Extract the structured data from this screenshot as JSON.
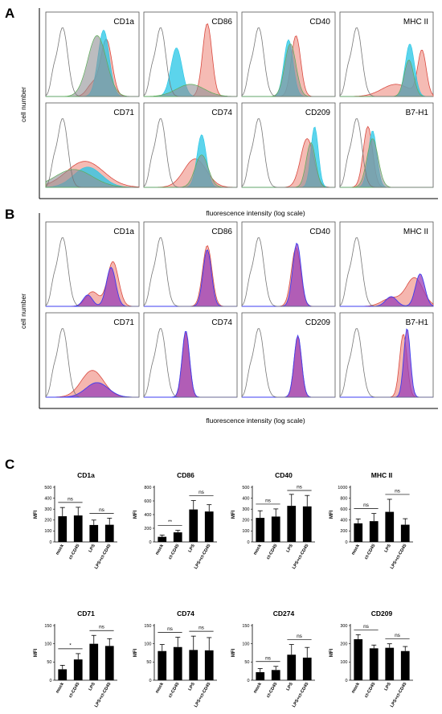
{
  "panels": {
    "A": {
      "letter": "A",
      "ylabel": "cell number",
      "xlabel": "fluorescence intensity (log scale)",
      "markers": [
        "CD1a",
        "CD86",
        "CD40",
        "MHC II",
        "CD71",
        "CD74",
        "CD209",
        "B7-H1"
      ]
    },
    "B": {
      "letter": "B",
      "ylabel": "cell number",
      "xlabel": "fluorescence intensity (log scale)",
      "markers": [
        "CD1a",
        "CD86",
        "CD40",
        "MHC II",
        "CD71",
        "CD74",
        "CD209",
        "B7-H1"
      ]
    },
    "C": {
      "letter": "C"
    }
  },
  "colors": {
    "isotype": "#777777",
    "red": "#d94a40",
    "red_fill": "#f2a49b",
    "cyan": "#25c6e6",
    "green": "#5cae58",
    "grey_fill": "#8f8f95",
    "purple": "#9a3fb8",
    "blue": "#3d3df0",
    "bar": "#000000"
  },
  "chart_data": [
    {
      "type": "bar",
      "title": "CD1a",
      "ylabel": "MFI",
      "categories": [
        "mock",
        "ct-CD45",
        "LPS",
        "LPS+ct-CD45"
      ],
      "values": [
        235,
        242,
        155,
        157
      ],
      "errors": [
        80,
        75,
        45,
        60
      ],
      "ylim": [
        0,
        500
      ],
      "yticks": [
        0,
        100,
        200,
        300,
        400,
        500
      ],
      "significance": [
        {
          "from": 0,
          "to": 1,
          "label": "ns"
        },
        {
          "from": 2,
          "to": 3,
          "label": "ns"
        }
      ]
    },
    {
      "type": "bar",
      "title": "CD86",
      "ylabel": "MFI",
      "categories": [
        "mock",
        "ct-CD45",
        "LPS",
        "LPS+ct-CD45"
      ],
      "values": [
        75,
        140,
        475,
        445
      ],
      "errors": [
        25,
        30,
        130,
        100
      ],
      "ylim": [
        0,
        800
      ],
      "yticks": [
        0,
        200,
        400,
        600,
        800
      ],
      "significance": [
        {
          "from": 0,
          "to": 1,
          "label": "**"
        },
        {
          "from": 2,
          "to": 3,
          "label": "ns"
        }
      ]
    },
    {
      "type": "bar",
      "title": "CD40",
      "ylabel": "MFI",
      "categories": [
        "mock",
        "ct-CD45",
        "LPS",
        "LPS+ct-CD45"
      ],
      "values": [
        220,
        232,
        330,
        325
      ],
      "errors": [
        65,
        70,
        105,
        100
      ],
      "ylim": [
        0,
        500
      ],
      "yticks": [
        0,
        100,
        200,
        300,
        400,
        500
      ],
      "significance": [
        {
          "from": 0,
          "to": 1,
          "label": "ns"
        },
        {
          "from": 2,
          "to": 3,
          "label": "ns"
        }
      ]
    },
    {
      "type": "bar",
      "title": "MHC II",
      "ylabel": "MFI",
      "categories": [
        "mock",
        "ct-CD45",
        "LPS",
        "LPS+ct-CD45"
      ],
      "values": [
        340,
        380,
        550,
        315
      ],
      "errors": [
        80,
        140,
        230,
        110
      ],
      "ylim": [
        0,
        1000
      ],
      "yticks": [
        0,
        200,
        400,
        600,
        800,
        1000
      ],
      "significance": [
        {
          "from": 0,
          "to": 1,
          "label": "ns"
        },
        {
          "from": 2,
          "to": 3,
          "label": "ns"
        }
      ]
    },
    {
      "type": "bar",
      "title": "CD71",
      "ylabel": "MFI",
      "categories": [
        "mock",
        "ct-CD45",
        "LPS",
        "LPS+ct-CD45"
      ],
      "values": [
        30,
        57,
        100,
        94
      ],
      "errors": [
        11,
        16,
        23,
        20
      ],
      "ylim": [
        0,
        150
      ],
      "yticks": [
        0,
        50,
        100,
        150
      ],
      "significance": [
        {
          "from": 0,
          "to": 1,
          "label": "*"
        },
        {
          "from": 2,
          "to": 3,
          "label": "ns"
        }
      ]
    },
    {
      "type": "bar",
      "title": "CD74",
      "ylabel": "MFI",
      "categories": [
        "mock",
        "ct-CD45",
        "LPS",
        "LPS+ct-CD45"
      ],
      "values": [
        80,
        91,
        83,
        82
      ],
      "errors": [
        18,
        27,
        38,
        35
      ],
      "ylim": [
        0,
        150
      ],
      "yticks": [
        0,
        50,
        100,
        150
      ],
      "significance": [
        {
          "from": 0,
          "to": 1,
          "label": "ns"
        },
        {
          "from": 2,
          "to": 3,
          "label": "ns"
        }
      ]
    },
    {
      "type": "bar",
      "title": "CD274",
      "ylabel": "MFI",
      "categories": [
        "mock",
        "ct-CD45",
        "LPS",
        "LPS+ct-CD45"
      ],
      "values": [
        22,
        28,
        70,
        62
      ],
      "errors": [
        10,
        10,
        28,
        28
      ],
      "ylim": [
        0,
        150
      ],
      "yticks": [
        0,
        50,
        100,
        150
      ],
      "significance": [
        {
          "from": 0,
          "to": 1,
          "label": "ns"
        },
        {
          "from": 2,
          "to": 3,
          "label": "ns"
        }
      ]
    },
    {
      "type": "bar",
      "title": "CD209",
      "ylabel": "MFI",
      "categories": [
        "mock",
        "ct-CD45",
        "LPS",
        "LPS+ct-CD45"
      ],
      "values": [
        225,
        175,
        178,
        160
      ],
      "errors": [
        25,
        18,
        22,
        25
      ],
      "ylim": [
        0,
        300
      ],
      "yticks": [
        0,
        100,
        200,
        300
      ],
      "significance": [
        {
          "from": 0,
          "to": 1,
          "label": "ns"
        },
        {
          "from": 2,
          "to": 3,
          "label": "ns"
        }
      ]
    }
  ]
}
